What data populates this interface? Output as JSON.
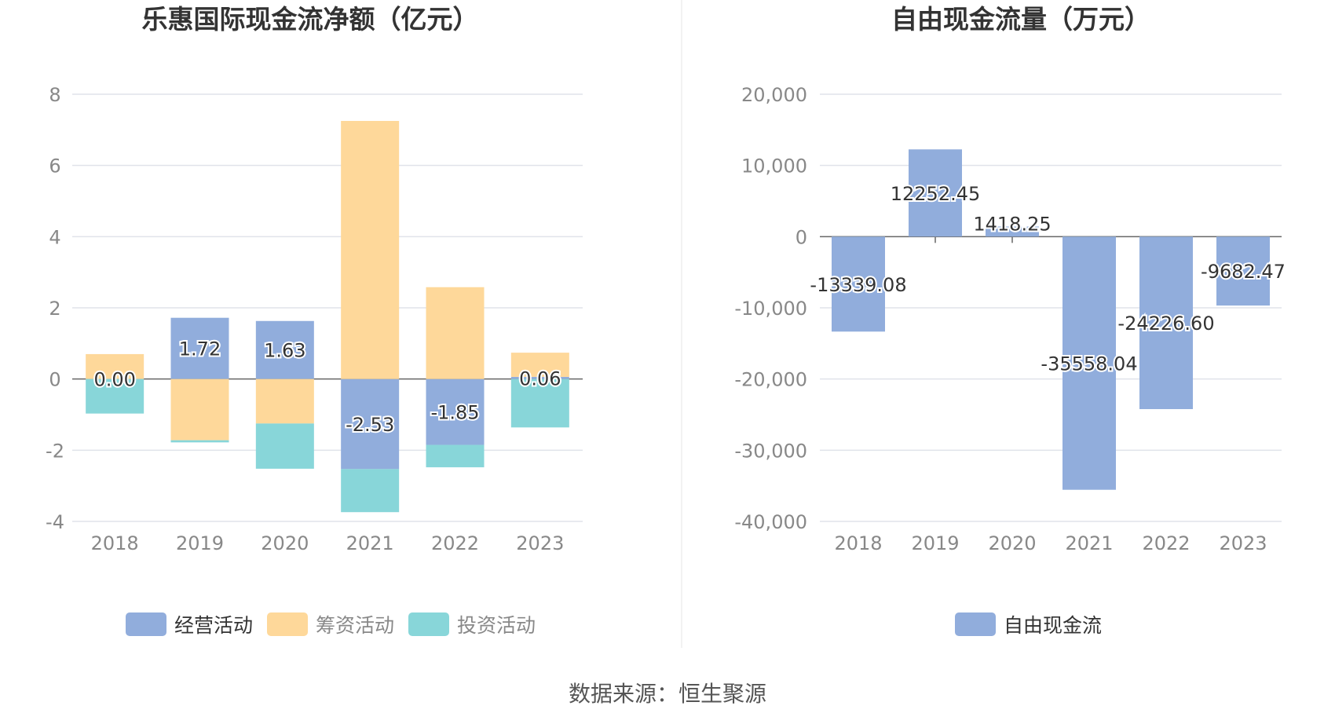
{
  "source_note": "数据来源：恒生聚源",
  "colors": {
    "operating": "#91ADDC",
    "financing": "#FED89A",
    "investing": "#88D6D9",
    "free_cash": "#91ADDC",
    "axis_text": "#888888",
    "grid": "#E0E3EA",
    "title": "#333333",
    "label": "#333333"
  },
  "chart_data": [
    {
      "type": "bar",
      "stacked": true,
      "title": "乐惠国际现金流净额（亿元）",
      "categories": [
        "2018",
        "2019",
        "2020",
        "2021",
        "2022",
        "2023"
      ],
      "ylim": [
        -4,
        8
      ],
      "yticks": [
        "8",
        "6",
        "4",
        "2",
        "0",
        "-2",
        "-4"
      ],
      "ytick_values": [
        8,
        6,
        4,
        2,
        0,
        -2,
        -4
      ],
      "series": [
        {
          "name": "经营活动",
          "color_key": "operating",
          "values": [
            0.0,
            1.72,
            1.63,
            -2.53,
            -1.85,
            0.06
          ],
          "labels": [
            "0.00",
            "1.72",
            "1.63",
            "-2.53",
            "-1.85",
            "0.06"
          ]
        },
        {
          "name": "筹资活动",
          "color_key": "financing",
          "values": [
            0.7,
            -1.72,
            -1.25,
            7.25,
            2.58,
            0.68
          ]
        },
        {
          "name": "投资活动",
          "color_key": "investing",
          "values": [
            -0.97,
            -0.06,
            -1.27,
            -1.21,
            -0.63,
            -1.36
          ]
        }
      ],
      "legend": [
        "经营活动",
        "筹资活动",
        "投资活动"
      ],
      "legend_position": "bottom"
    },
    {
      "type": "bar",
      "title": "自由现金流量（万元）",
      "categories": [
        "2018",
        "2019",
        "2020",
        "2021",
        "2022",
        "2023"
      ],
      "ylim": [
        -40000,
        20000
      ],
      "yticks": [
        "20,000",
        "10,000",
        "0",
        "-10,000",
        "-20,000",
        "-30,000",
        "-40,000"
      ],
      "ytick_values": [
        20000,
        10000,
        0,
        -10000,
        -20000,
        -30000,
        -40000
      ],
      "series": [
        {
          "name": "自由现金流",
          "color_key": "free_cash",
          "values": [
            -13339.08,
            12252.45,
            1418.25,
            -35558.04,
            -24226.6,
            -9682.47
          ],
          "labels": [
            "-13339.08",
            "12252.45",
            "1418.25",
            "-35558.04",
            "-24226.60",
            "-9682.47"
          ]
        }
      ],
      "legend": [
        "自由现金流"
      ],
      "legend_position": "bottom"
    }
  ]
}
